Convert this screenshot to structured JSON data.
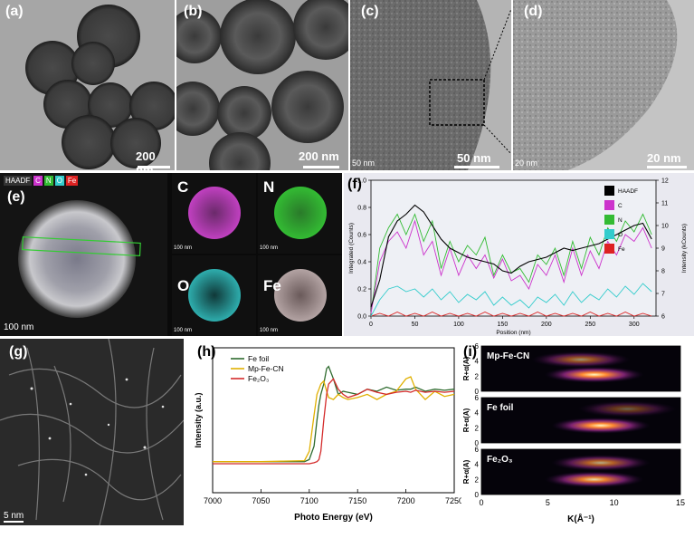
{
  "panels": {
    "a": {
      "label": "(a)",
      "scale": "200 nm"
    },
    "b": {
      "label": "(b)",
      "scale": "200 nm"
    },
    "c": {
      "label": "(c)",
      "scale": "50 nm",
      "scale_small": "50 nm"
    },
    "d": {
      "label": "(d)",
      "scale": "20 nm",
      "scale_small": "20 nm"
    },
    "e": {
      "label": "(e)",
      "scale": "100 nm",
      "legend": [
        "HAADF",
        "C",
        "N",
        "O",
        "Fe"
      ],
      "maps": [
        {
          "name": "C",
          "color": "#d63bd6",
          "scale": "100 nm"
        },
        {
          "name": "N",
          "color": "#33c233",
          "scale": "100 nm"
        },
        {
          "name": "O",
          "color": "#35c7c7",
          "scale": "100 nm"
        },
        {
          "name": "Fe",
          "color": "#b5a0a0",
          "scale": "100 nm"
        }
      ]
    },
    "f": {
      "label": "(f)"
    },
    "g": {
      "label": "(g)",
      "scale": "5 nm"
    },
    "h": {
      "label": "(h)"
    },
    "i": {
      "label": "(i)"
    }
  },
  "chart_data": [
    {
      "type": "line",
      "panel": "f",
      "xlabel": "Position (nm)",
      "ylabel": "Integrated (Counts)",
      "y2label": "Intensity (kCounts)",
      "xlim": [
        0,
        325
      ],
      "ylim": [
        0,
        1.0
      ],
      "y2lim": [
        6,
        12
      ],
      "xticks": [
        "0",
        "50",
        "100",
        "150",
        "200",
        "250",
        "300"
      ],
      "yticks": [
        "0.0",
        "0.2",
        "0.4",
        "0.6",
        "0.8",
        "1.0"
      ],
      "y2ticks": [
        "6",
        "7",
        "8",
        "9",
        "10",
        "11",
        "12"
      ],
      "legend": [
        {
          "name": "HAADF",
          "color": "#000000"
        },
        {
          "name": "C",
          "color": "#cc33cc"
        },
        {
          "name": "N",
          "color": "#33bb33"
        },
        {
          "name": "O",
          "color": "#33cccc"
        },
        {
          "name": "Fe",
          "color": "#dd2222"
        }
      ],
      "x": [
        0,
        10,
        20,
        30,
        40,
        50,
        60,
        70,
        80,
        90,
        100,
        110,
        120,
        130,
        140,
        150,
        160,
        170,
        180,
        190,
        200,
        210,
        220,
        230,
        240,
        250,
        260,
        270,
        280,
        290,
        300,
        310,
        320
      ],
      "series": [
        {
          "name": "HAADF",
          "axis": "y2",
          "values": [
            6.4,
            7.6,
            9.5,
            10.2,
            10.5,
            10.9,
            10.6,
            10.0,
            9.4,
            9.0,
            8.8,
            8.6,
            8.5,
            8.4,
            8.3,
            8.0,
            7.9,
            8.2,
            8.4,
            8.5,
            8.6,
            8.8,
            9.0,
            8.9,
            9.0,
            9.1,
            9.2,
            9.4,
            9.6,
            9.8,
            10.0,
            10.1,
            9.4
          ]
        },
        {
          "name": "C",
          "axis": "y",
          "values": [
            0.02,
            0.4,
            0.55,
            0.62,
            0.5,
            0.7,
            0.45,
            0.55,
            0.3,
            0.5,
            0.3,
            0.45,
            0.35,
            0.45,
            0.28,
            0.42,
            0.26,
            0.3,
            0.2,
            0.38,
            0.3,
            0.45,
            0.25,
            0.5,
            0.3,
            0.48,
            0.35,
            0.55,
            0.45,
            0.6,
            0.55,
            0.65,
            0.5
          ]
        },
        {
          "name": "N",
          "axis": "y",
          "values": [
            0.02,
            0.5,
            0.65,
            0.75,
            0.6,
            0.75,
            0.55,
            0.7,
            0.35,
            0.55,
            0.4,
            0.52,
            0.45,
            0.58,
            0.3,
            0.45,
            0.32,
            0.35,
            0.25,
            0.45,
            0.38,
            0.5,
            0.3,
            0.55,
            0.35,
            0.58,
            0.45,
            0.65,
            0.55,
            0.7,
            0.62,
            0.75,
            0.6
          ]
        },
        {
          "name": "O",
          "axis": "y",
          "values": [
            0.0,
            0.12,
            0.2,
            0.22,
            0.18,
            0.2,
            0.14,
            0.2,
            0.12,
            0.18,
            0.1,
            0.16,
            0.12,
            0.18,
            0.08,
            0.14,
            0.08,
            0.12,
            0.06,
            0.14,
            0.1,
            0.16,
            0.08,
            0.18,
            0.1,
            0.16,
            0.12,
            0.2,
            0.14,
            0.22,
            0.16,
            0.24,
            0.18
          ]
        },
        {
          "name": "Fe",
          "axis": "y",
          "values": [
            0.0,
            0.02,
            0.0,
            0.03,
            0.0,
            0.02,
            0.0,
            0.03,
            0.0,
            0.02,
            0.0,
            0.02,
            0.0,
            0.03,
            0.0,
            0.02,
            0.0,
            0.02,
            0.0,
            0.03,
            0.0,
            0.02,
            0.0,
            0.02,
            0.0,
            0.03,
            0.0,
            0.02,
            0.0,
            0.03,
            0.0,
            0.02,
            0.0
          ]
        }
      ]
    },
    {
      "type": "line",
      "panel": "h",
      "xlabel": "Photo Energy (eV)",
      "ylabel": "Intensity (a.u.)",
      "xlim": [
        7000,
        7250
      ],
      "ylim": [
        0,
        1.4
      ],
      "xticks": [
        "7000",
        "7050",
        "7100",
        "7150",
        "7200",
        "7250"
      ],
      "x": [
        7000,
        7050,
        7095,
        7100,
        7105,
        7108,
        7110,
        7112,
        7115,
        7118,
        7120,
        7125,
        7130,
        7135,
        7140,
        7150,
        7160,
        7170,
        7180,
        7190,
        7200,
        7205,
        7210,
        7220,
        7230,
        7240,
        7250
      ],
      "series": [
        {
          "name": "Fe foil",
          "color": "#2e6b2e",
          "values": [
            0.3,
            0.3,
            0.3,
            0.32,
            0.45,
            0.7,
            0.85,
            0.95,
            1.05,
            1.2,
            1.22,
            1.1,
            0.95,
            0.98,
            0.97,
            0.95,
            1.0,
            0.98,
            1.02,
            0.99,
            1.0,
            1.0,
            1.02,
            0.98,
            1.0,
            0.99,
            1.0
          ]
        },
        {
          "name": "Mp-Fe-CN",
          "color": "#e0b000",
          "values": [
            0.3,
            0.3,
            0.31,
            0.4,
            0.75,
            0.95,
            1.0,
            1.05,
            1.08,
            0.98,
            0.92,
            0.9,
            0.95,
            0.92,
            0.9,
            0.92,
            0.95,
            0.9,
            0.95,
            0.98,
            1.1,
            1.12,
            1.0,
            0.9,
            0.98,
            0.93,
            0.95
          ]
        },
        {
          "name": "Fe2O3",
          "color": "#d42a2a",
          "values": [
            0.28,
            0.28,
            0.28,
            0.28,
            0.29,
            0.3,
            0.32,
            0.4,
            0.7,
            0.95,
            1.05,
            1.1,
            1.0,
            0.95,
            0.92,
            0.95,
            1.0,
            0.97,
            0.95,
            0.97,
            0.98,
            0.97,
            0.99,
            0.97,
            0.98,
            0.97,
            0.98
          ]
        }
      ],
      "legend_labels": [
        "Fe foil",
        "Mp-Fe-CN",
        "Fe₂O₃"
      ]
    },
    {
      "type": "heatmap",
      "panel": "i",
      "xlabel": "K(Å⁻¹)",
      "ylabel": "R+α(Å)",
      "xlim": [
        0,
        15
      ],
      "ylim": [
        0,
        6
      ],
      "xticks": [
        "0",
        "5",
        "10",
        "15"
      ],
      "yticks": [
        "0",
        "2",
        "4",
        "6"
      ],
      "subplots": [
        {
          "name": "Mp-Fe-CN",
          "label": "Mp-Fe-CN",
          "peaks": [
            {
              "k": 8.5,
              "r": 2.2,
              "i": 1.0
            },
            {
              "k": 7.5,
              "r": 4.2,
              "i": 0.6
            }
          ]
        },
        {
          "name": "Fe foil",
          "label": "Fe foil",
          "peaks": [
            {
              "k": 9.0,
              "r": 2.3,
              "i": 1.0
            },
            {
              "k": 11.0,
              "r": 4.5,
              "i": 0.4
            }
          ]
        },
        {
          "name": "Fe2O3",
          "label": "Fe₂O₃",
          "peaks": [
            {
              "k": 8.5,
              "r": 2.0,
              "i": 0.9
            },
            {
              "k": 9.0,
              "r": 4.2,
              "i": 0.7
            }
          ]
        }
      ]
    }
  ]
}
